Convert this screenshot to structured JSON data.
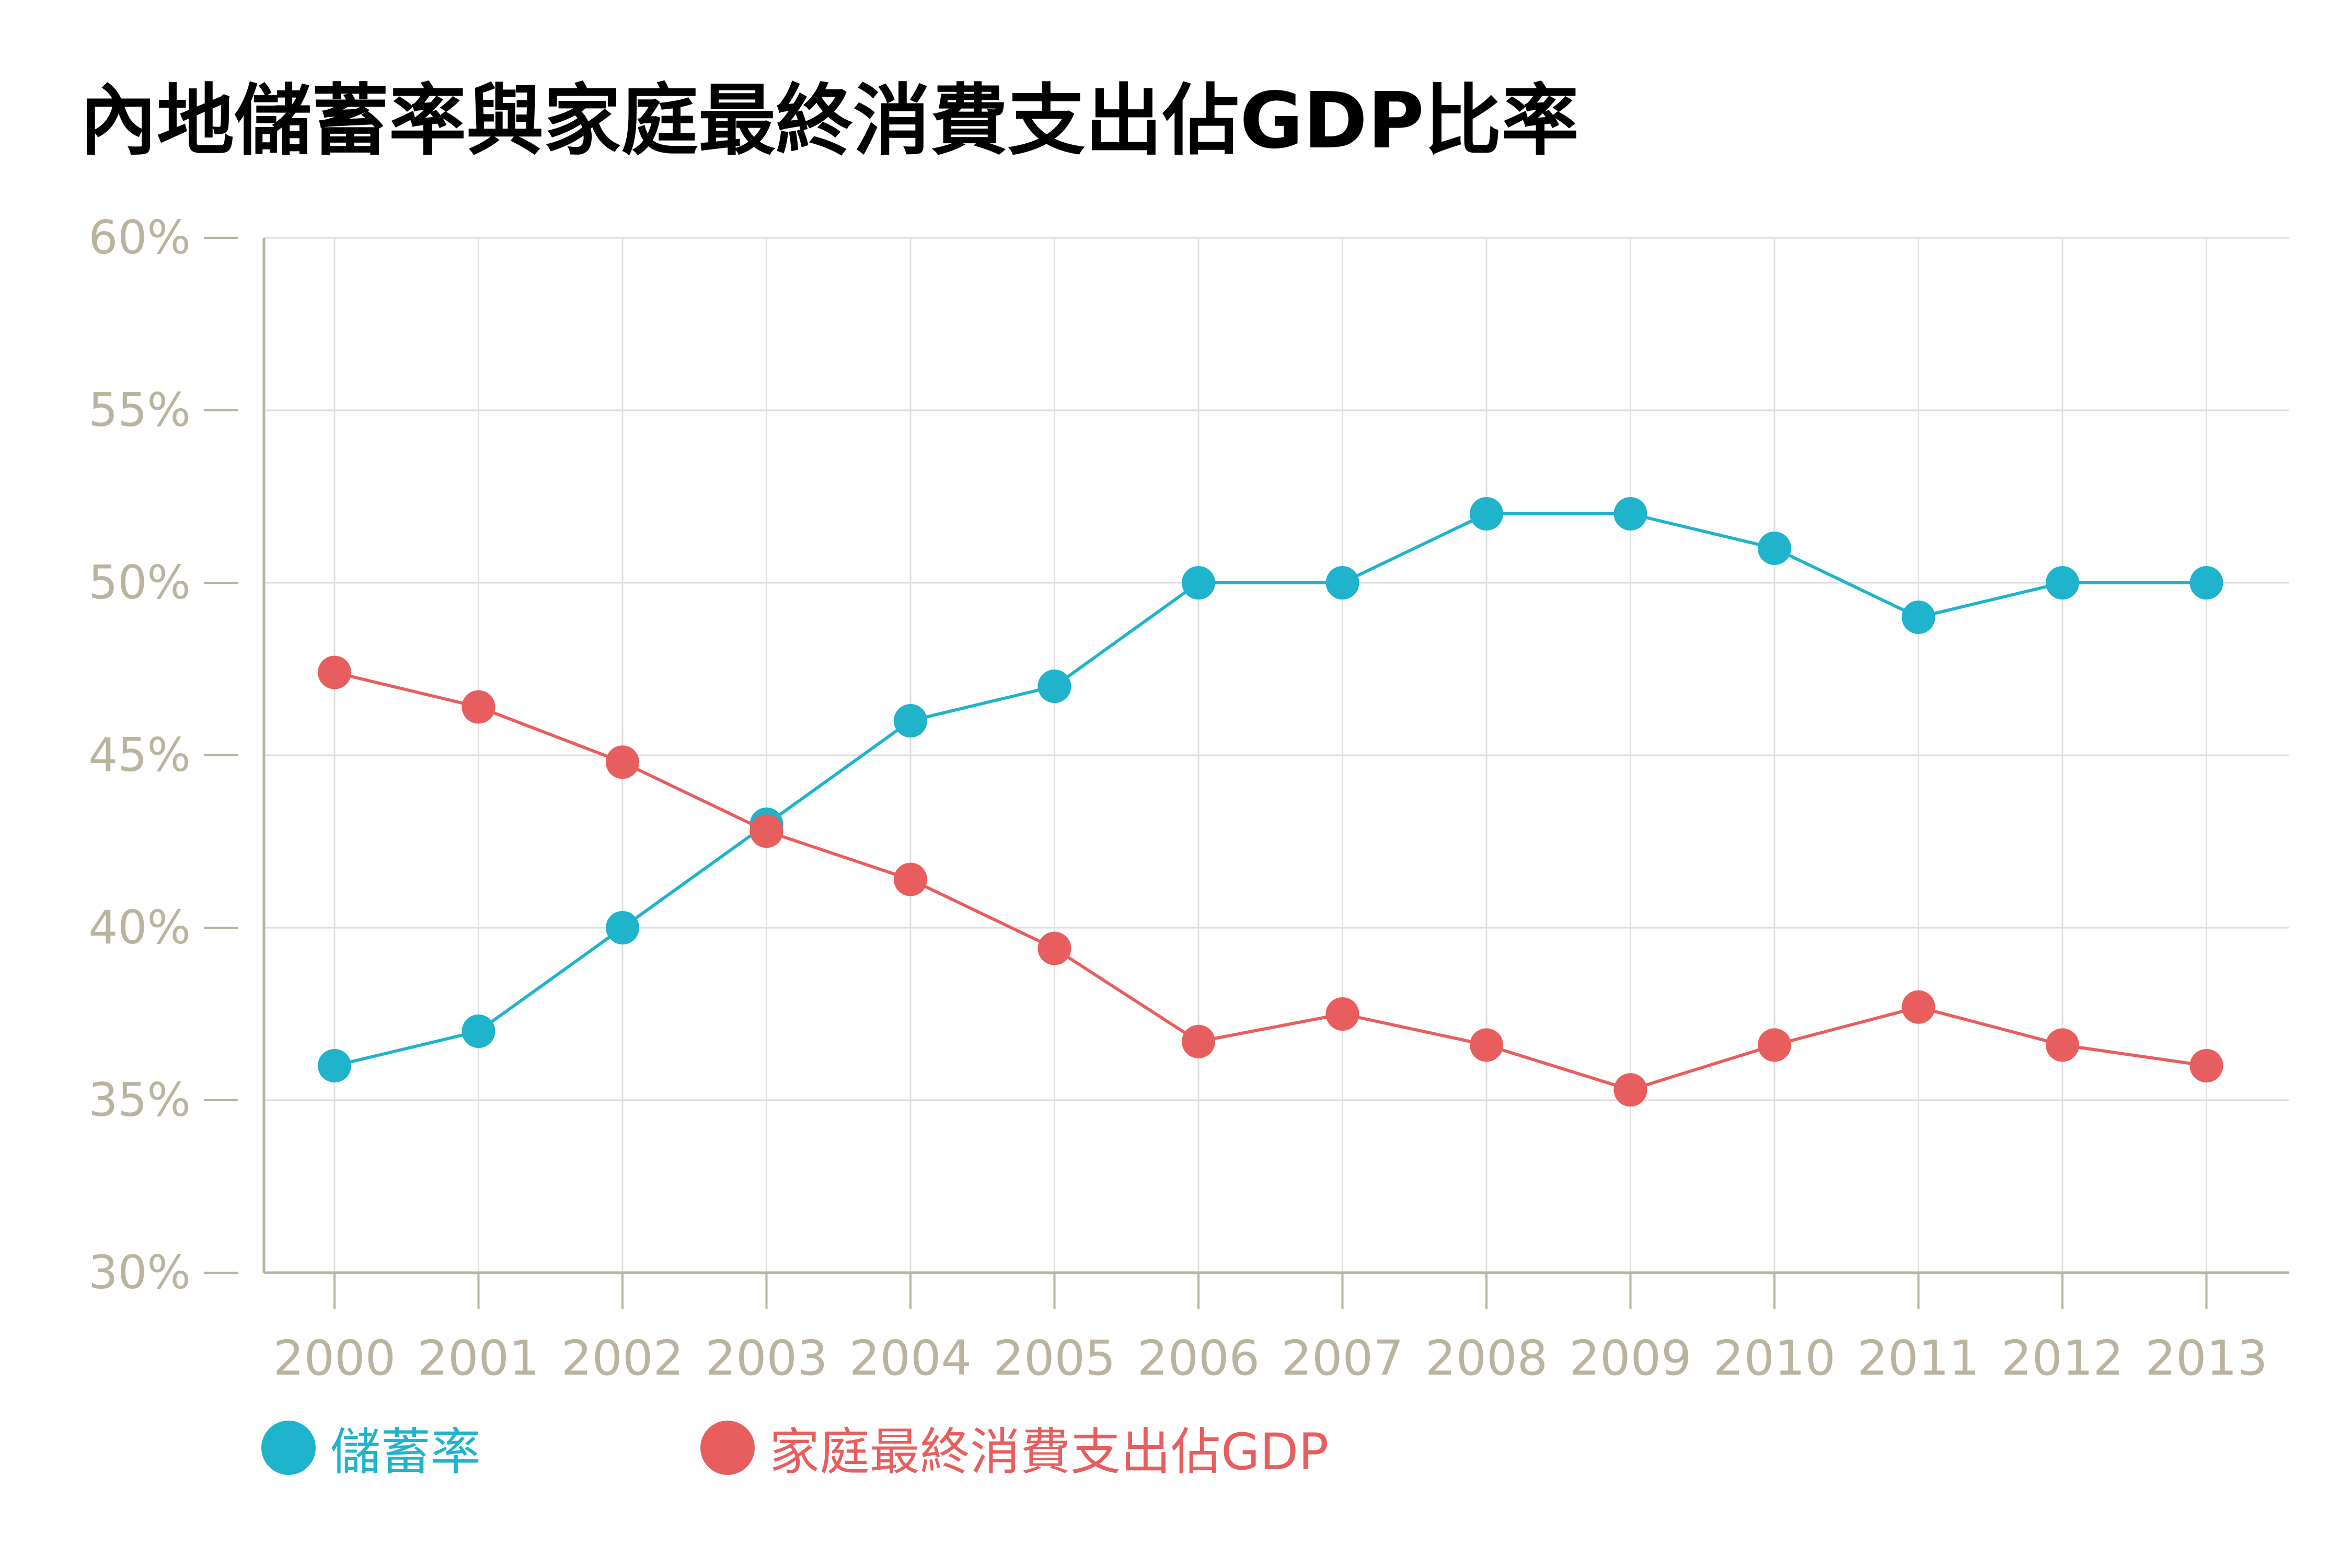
{
  "chart_data": {
    "type": "line",
    "title": "內地儲蓄率與家庭最終消費支出佔GDP比率",
    "xlabel": "",
    "ylabel": "",
    "categories": [
      "2000",
      "2001",
      "2002",
      "2003",
      "2004",
      "2005",
      "2006",
      "2007",
      "2008",
      "2009",
      "2010",
      "2011",
      "2012",
      "2013"
    ],
    "ylim": [
      30,
      60
    ],
    "yticks": [
      30,
      35,
      40,
      45,
      50,
      55,
      60
    ],
    "ytick_labels": [
      "30%",
      "35%",
      "40%",
      "45%",
      "50%",
      "55%",
      "60%"
    ],
    "grid": true,
    "legend_position": "bottom-left",
    "series": [
      {
        "name": "儲蓄率",
        "color": "#1fb3cc",
        "values": [
          36,
          37,
          40,
          43,
          46,
          47,
          50,
          50,
          52,
          52,
          51,
          49,
          50,
          50
        ]
      },
      {
        "name": "家庭最終消費支出佔GDP",
        "color": "#e85e5e",
        "values": [
          47.4,
          46.4,
          44.8,
          42.8,
          41.4,
          39.4,
          36.7,
          37.5,
          36.6,
          35.3,
          36.6,
          37.7,
          36.6,
          36.0
        ]
      }
    ],
    "axis_color": "#b9b49e",
    "grid_color": "#dddddd"
  }
}
